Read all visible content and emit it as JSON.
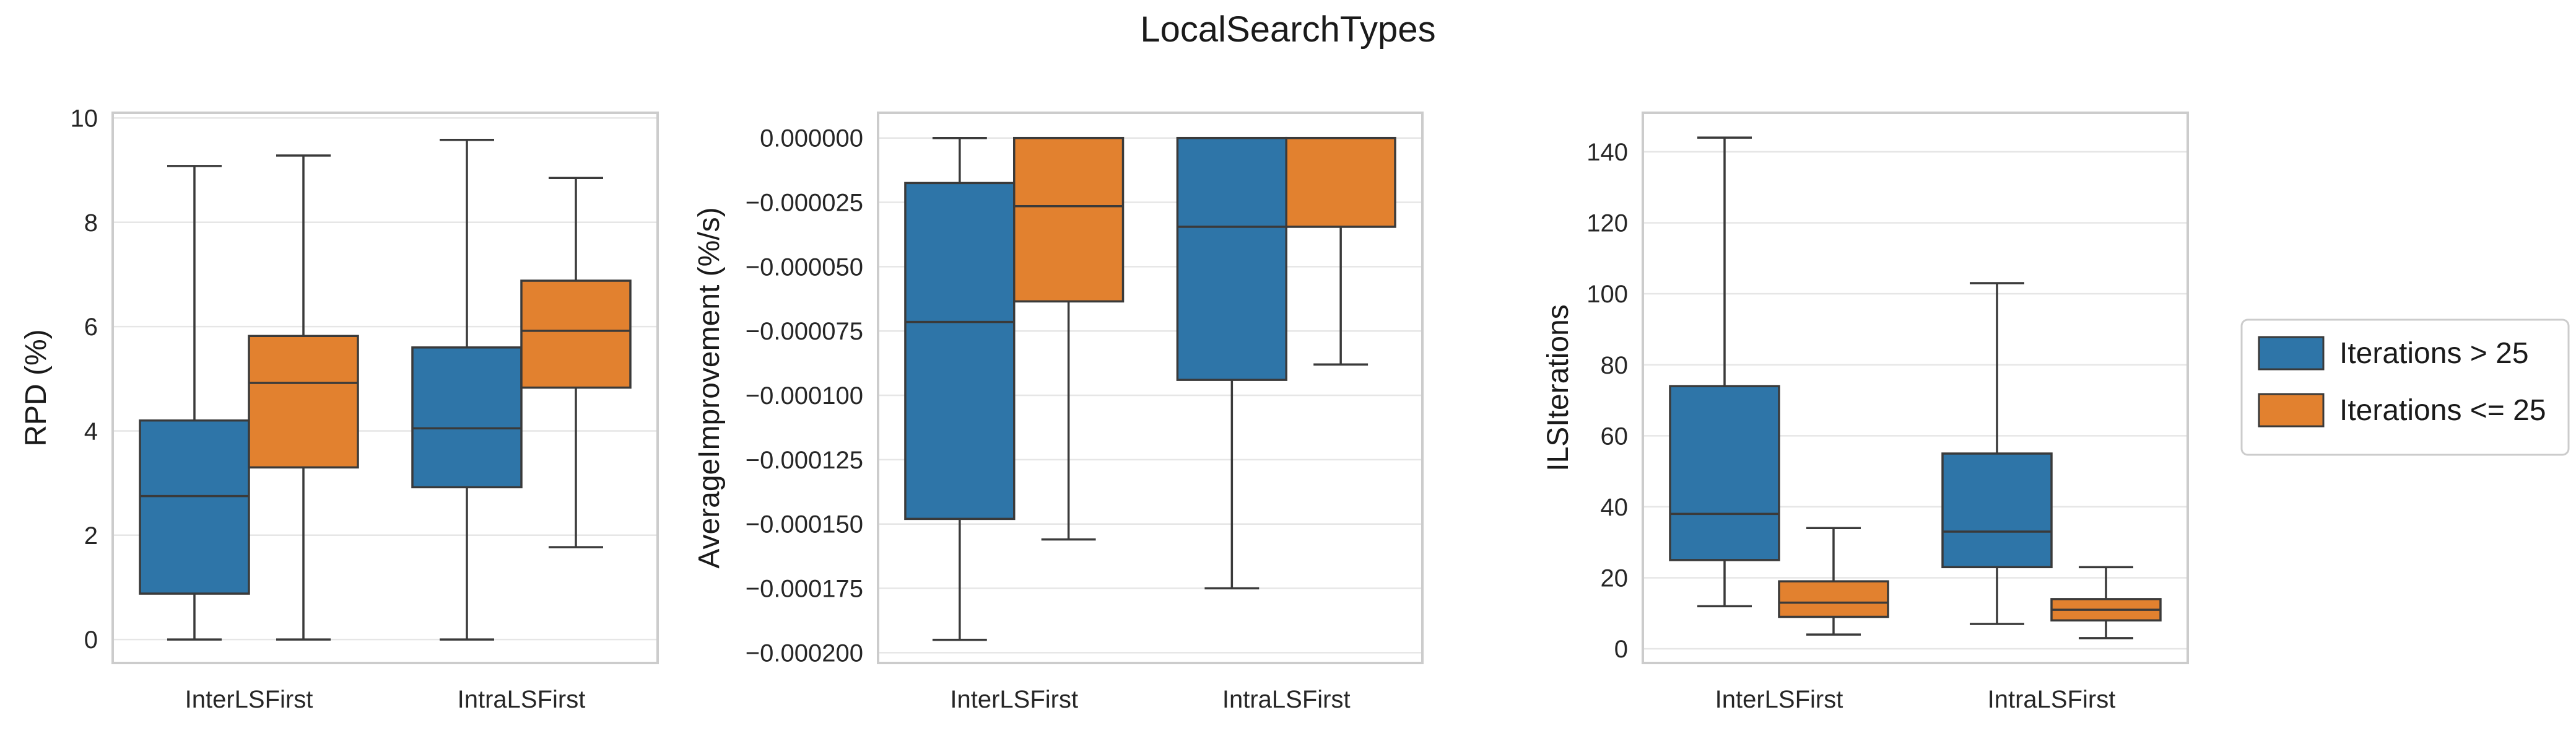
{
  "figure": {
    "title": "LocalSearchTypes"
  },
  "legend": {
    "placement": "right-center",
    "entries": [
      {
        "label": "Iterations > 25",
        "color": "#2e75a8"
      },
      {
        "label": "Iterations <= 25",
        "color": "#e2812f"
      }
    ]
  },
  "chart_data": [
    {
      "type": "box",
      "title": "",
      "xlabel": "",
      "ylabel": "RPD (%)",
      "ylim": [
        -0.45,
        10.1
      ],
      "yticks": [
        0,
        2,
        4,
        6,
        8,
        10
      ],
      "yticklabels": [
        "0",
        "2",
        "4",
        "6",
        "8",
        "10"
      ],
      "categories": [
        "InterLSFirst",
        "IntraLSFirst"
      ],
      "grid": true,
      "series": [
        {
          "name": "Iterations > 25",
          "color": "#2e75a8",
          "boxes": [
            {
              "whisker_low": 0.0,
              "q1": 0.88,
              "median": 2.75,
              "q3": 4.2,
              "whisker_high": 9.08
            },
            {
              "whisker_low": 0.0,
              "q1": 2.92,
              "median": 4.05,
              "q3": 5.6,
              "whisker_high": 9.58
            }
          ]
        },
        {
          "name": "Iterations <= 25",
          "color": "#e2812f",
          "boxes": [
            {
              "whisker_low": 0.0,
              "q1": 3.3,
              "median": 4.92,
              "q3": 5.82,
              "whisker_high": 9.28
            },
            {
              "whisker_low": 1.77,
              "q1": 4.83,
              "median": 5.92,
              "q3": 6.88,
              "whisker_high": 8.85
            }
          ]
        }
      ]
    },
    {
      "type": "box",
      "title": "",
      "xlabel": "",
      "ylabel": "AverageImprovement (%/s)",
      "ylim": [
        -0.000204,
        9.8e-06
      ],
      "yticks": [
        0.0,
        -2.5e-05,
        -5e-05,
        -7.5e-05,
        -0.0001,
        -0.000125,
        -0.00015,
        -0.000175,
        -0.0002
      ],
      "yticklabels": [
        "0.000000",
        "−0.000025",
        "−0.000050",
        "−0.000075",
        "−0.000100",
        "−0.000125",
        "−0.000150",
        "−0.000175",
        "−0.000200"
      ],
      "categories": [
        "InterLSFirst",
        "IntraLSFirst"
      ],
      "grid": true,
      "series": [
        {
          "name": "Iterations > 25",
          "color": "#2e75a8",
          "boxes": [
            {
              "whisker_low": -0.000195,
              "q1": -0.000148,
              "median": -7.15e-05,
              "q3": -1.75e-05,
              "whisker_high": 0.0
            },
            {
              "whisker_low": -0.000175,
              "q1": -9.4e-05,
              "median": -3.45e-05,
              "q3": 0.0,
              "whisker_high": 0.0
            }
          ]
        },
        {
          "name": "Iterations <= 25",
          "color": "#e2812f",
          "boxes": [
            {
              "whisker_low": -0.000156,
              "q1": -6.35e-05,
              "median": -2.65e-05,
              "q3": 0.0,
              "whisker_high": 0.0
            },
            {
              "whisker_low": -8.8e-05,
              "q1": -3.45e-05,
              "median": 0.0,
              "q3": 0.0,
              "whisker_high": 0.0
            }
          ]
        }
      ]
    },
    {
      "type": "box",
      "title": "",
      "xlabel": "",
      "ylabel": "ILSIterations",
      "ylim": [
        -4,
        151
      ],
      "yticks": [
        0,
        20,
        40,
        60,
        80,
        100,
        120,
        140
      ],
      "yticklabels": [
        "0",
        "20",
        "40",
        "60",
        "80",
        "100",
        "120",
        "140"
      ],
      "categories": [
        "InterLSFirst",
        "IntraLSFirst"
      ],
      "grid": true,
      "series": [
        {
          "name": "Iterations > 25",
          "color": "#2e75a8",
          "boxes": [
            {
              "whisker_low": 12,
              "q1": 25,
              "median": 38,
              "q3": 74,
              "whisker_high": 144
            },
            {
              "whisker_low": 7,
              "q1": 23,
              "median": 33,
              "q3": 55,
              "whisker_high": 103
            }
          ]
        },
        {
          "name": "Iterations <= 25",
          "color": "#e2812f",
          "boxes": [
            {
              "whisker_low": 4,
              "q1": 9,
              "median": 13,
              "q3": 19,
              "whisker_high": 34
            },
            {
              "whisker_low": 3,
              "q1": 8,
              "median": 11,
              "q3": 14,
              "whisker_high": 23
            }
          ]
        }
      ]
    }
  ]
}
